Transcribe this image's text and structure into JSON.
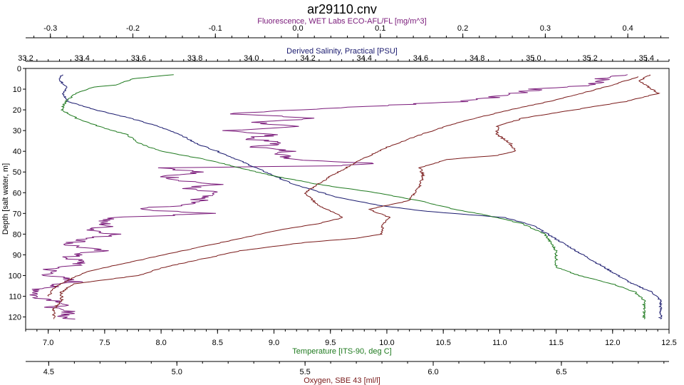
{
  "colors": {
    "fluorescence": "#7a1a7a",
    "salinity": "#1a1a6e",
    "temperature": "#1f7a1f",
    "oxygen": "#7a1a1a",
    "axis": "#000000"
  },
  "chart_data": {
    "type": "line",
    "title": "ar29110.cnv",
    "grid": false,
    "legend": "none",
    "depth_axis": {
      "label": "Depth [salt water, m]",
      "range": [
        0,
        126
      ],
      "ticks": [
        0,
        10,
        20,
        30,
        40,
        50,
        60,
        70,
        80,
        90,
        100,
        110,
        120
      ],
      "reversed": true
    },
    "x_axes": [
      {
        "key": "fluorescence",
        "position": "top",
        "label": "Fluorescence, WET Labs ECO-AFL/FL [mg/m^3]",
        "range": [
          -0.33,
          0.45
        ],
        "ticks": [
          -0.3,
          -0.2,
          -0.1,
          0.0,
          0.1,
          0.2,
          0.3,
          0.4
        ],
        "tick_labels": [
          "-0.3",
          "-0.2",
          "-0.1",
          "0.0",
          "0.1",
          "0.2",
          "0.3",
          "0.4"
        ]
      },
      {
        "key": "salinity",
        "position": "top",
        "label": "Derived Salinity, Practical [PSU]",
        "range": [
          33.2,
          35.48
        ],
        "ticks": [
          33.2,
          33.4,
          33.6,
          33.8,
          34.0,
          34.2,
          34.4,
          34.6,
          34.8,
          35.0,
          35.2,
          35.4
        ],
        "tick_labels": [
          "33.2",
          "33.4",
          "33.6",
          "33.8",
          "34.0",
          "34.2",
          "34.4",
          "34.6",
          "34.8",
          "35.0",
          "35.2",
          "35.4"
        ]
      },
      {
        "key": "temperature",
        "position": "bottom",
        "label": "Temperature [ITS-90, deg C]",
        "range": [
          6.8,
          12.5
        ],
        "ticks": [
          7.0,
          7.5,
          8.0,
          8.5,
          9.0,
          9.5,
          10.0,
          10.5,
          11.0,
          11.5,
          12.0,
          12.5
        ],
        "tick_labels": [
          "7.0",
          "7.5",
          "8.0",
          "8.5",
          "9.0",
          "9.5",
          "10.0",
          "10.5",
          "11.0",
          "11.5",
          "12.0",
          "12.5"
        ]
      },
      {
        "key": "oxygen",
        "position": "bottom",
        "label": "Oxygen, SBE 43 [ml/l]",
        "range": [
          4.41,
          6.92
        ],
        "ticks": [
          4.5,
          5.0,
          5.5,
          6.0,
          6.5
        ],
        "tick_labels": [
          "4.5",
          "5.0",
          "5.5",
          "6.0",
          "6.5"
        ]
      }
    ],
    "series": [
      {
        "key": "fluorescence",
        "axis": "fluorescence",
        "points": [
          [
            0.4,
            3
          ],
          [
            0.37,
            5
          ],
          [
            0.36,
            8
          ],
          [
            0.29,
            10
          ],
          [
            0.25,
            13
          ],
          [
            0.2,
            16
          ],
          [
            0.1,
            18
          ],
          [
            0.0,
            20
          ],
          [
            -0.08,
            22
          ],
          [
            0.02,
            24
          ],
          [
            -0.05,
            26
          ],
          [
            -0.01,
            28
          ],
          [
            -0.08,
            30
          ],
          [
            -0.03,
            32
          ],
          [
            -0.06,
            34
          ],
          [
            -0.02,
            36
          ],
          [
            -0.05,
            38
          ],
          [
            -0.01,
            40
          ],
          [
            -0.02,
            42
          ],
          [
            0.0,
            44
          ],
          [
            0.1,
            46
          ],
          [
            0.05,
            47
          ],
          [
            -0.16,
            48
          ],
          [
            -0.12,
            50
          ],
          [
            -0.16,
            52
          ],
          [
            -0.14,
            54
          ],
          [
            -0.1,
            56
          ],
          [
            -0.14,
            58
          ],
          [
            -0.1,
            60
          ],
          [
            -0.12,
            62
          ],
          [
            -0.12,
            64
          ],
          [
            -0.14,
            66
          ],
          [
            -0.2,
            68
          ],
          [
            -0.1,
            70
          ],
          [
            -0.22,
            72
          ],
          [
            -0.24,
            74
          ],
          [
            -0.23,
            76
          ],
          [
            -0.25,
            78
          ],
          [
            -0.22,
            80
          ],
          [
            -0.25,
            82
          ],
          [
            -0.28,
            85
          ],
          [
            -0.24,
            88
          ],
          [
            -0.28,
            91
          ],
          [
            -0.26,
            94
          ],
          [
            -0.3,
            97
          ],
          [
            -0.3,
            100
          ],
          [
            -0.27,
            103
          ],
          [
            -0.31,
            106
          ],
          [
            -0.32,
            110
          ],
          [
            -0.28,
            113
          ],
          [
            -0.3,
            116
          ],
          [
            -0.27,
            118
          ],
          [
            -0.29,
            120
          ],
          [
            -0.27,
            121
          ]
        ],
        "noise": 0.012
      },
      {
        "key": "salinity",
        "axis": "salinity",
        "points": [
          [
            33.33,
            3
          ],
          [
            33.32,
            6
          ],
          [
            33.35,
            9
          ],
          [
            33.33,
            12
          ],
          [
            33.35,
            16
          ],
          [
            33.45,
            20
          ],
          [
            33.57,
            24
          ],
          [
            33.67,
            28
          ],
          [
            33.75,
            32
          ],
          [
            33.8,
            36
          ],
          [
            33.88,
            40
          ],
          [
            33.95,
            44
          ],
          [
            34.05,
            50
          ],
          [
            34.15,
            56
          ],
          [
            34.3,
            62
          ],
          [
            34.45,
            66
          ],
          [
            34.62,
            69
          ],
          [
            34.9,
            72
          ],
          [
            35.0,
            76
          ],
          [
            35.05,
            80
          ],
          [
            35.1,
            84
          ],
          [
            35.15,
            88
          ],
          [
            35.2,
            92
          ],
          [
            35.25,
            96
          ],
          [
            35.3,
            100
          ],
          [
            35.35,
            104
          ],
          [
            35.42,
            108
          ],
          [
            35.45,
            112
          ],
          [
            35.45,
            121
          ]
        ],
        "noise": 0.005
      },
      {
        "key": "temperature",
        "axis": "temperature",
        "points": [
          [
            8.1,
            3
          ],
          [
            7.75,
            5
          ],
          [
            7.6,
            8
          ],
          [
            7.4,
            9
          ],
          [
            7.25,
            12
          ],
          [
            7.15,
            16
          ],
          [
            7.12,
            20
          ],
          [
            7.25,
            24
          ],
          [
            7.45,
            28
          ],
          [
            7.7,
            32
          ],
          [
            7.8,
            36
          ],
          [
            8.0,
            40
          ],
          [
            8.4,
            44
          ],
          [
            8.7,
            48
          ],
          [
            9.0,
            52
          ],
          [
            9.4,
            56
          ],
          [
            9.9,
            60
          ],
          [
            10.3,
            64
          ],
          [
            10.6,
            68
          ],
          [
            10.9,
            71
          ],
          [
            11.2,
            75
          ],
          [
            11.4,
            80
          ],
          [
            11.5,
            88
          ],
          [
            11.5,
            96
          ],
          [
            11.7,
            100
          ],
          [
            12.0,
            104
          ],
          [
            12.2,
            108
          ],
          [
            12.28,
            112
          ],
          [
            12.28,
            121
          ]
        ],
        "noise": 0.012
      },
      {
        "key": "oxygen",
        "axis": "oxygen",
        "points": [
          [
            6.85,
            3
          ],
          [
            6.8,
            6
          ],
          [
            6.88,
            12
          ],
          [
            6.75,
            16
          ],
          [
            6.55,
            20
          ],
          [
            6.35,
            24
          ],
          [
            6.25,
            28
          ],
          [
            6.25,
            32
          ],
          [
            6.3,
            36
          ],
          [
            6.32,
            40
          ],
          [
            6.25,
            42
          ],
          [
            6.05,
            44
          ],
          [
            5.95,
            48
          ],
          [
            5.96,
            52
          ],
          [
            5.95,
            56
          ],
          [
            5.93,
            60
          ],
          [
            5.9,
            64
          ],
          [
            5.75,
            68
          ],
          [
            5.83,
            72
          ],
          [
            5.8,
            76
          ],
          [
            5.8,
            80
          ],
          [
            5.7,
            82
          ],
          [
            5.5,
            84
          ],
          [
            5.25,
            88
          ],
          [
            5.1,
            92
          ],
          [
            4.95,
            96
          ],
          [
            4.85,
            100
          ],
          [
            4.6,
            104
          ],
          [
            4.55,
            108
          ],
          [
            4.55,
            112
          ],
          [
            4.52,
            116
          ],
          [
            4.52,
            121
          ]
        ],
        "noise": 0.006
      },
      {
        "key": "oxygen_upcast",
        "axis": "oxygen",
        "points": [
          [
            6.8,
            4
          ],
          [
            6.7,
            8
          ],
          [
            6.58,
            12
          ],
          [
            6.45,
            16
          ],
          [
            6.3,
            20
          ],
          [
            6.1,
            26
          ],
          [
            5.95,
            32
          ],
          [
            5.82,
            38
          ],
          [
            5.72,
            44
          ],
          [
            5.6,
            52
          ],
          [
            5.5,
            60
          ],
          [
            5.55,
            66
          ],
          [
            5.65,
            72
          ],
          [
            5.55,
            75
          ],
          [
            5.4,
            78
          ],
          [
            5.25,
            82
          ],
          [
            5.1,
            86
          ],
          [
            4.95,
            90
          ],
          [
            4.8,
            94
          ],
          [
            4.65,
            98
          ],
          [
            4.58,
            102
          ],
          [
            4.52,
            106
          ],
          [
            4.5,
            110
          ]
        ],
        "noise": 0.005
      }
    ]
  }
}
